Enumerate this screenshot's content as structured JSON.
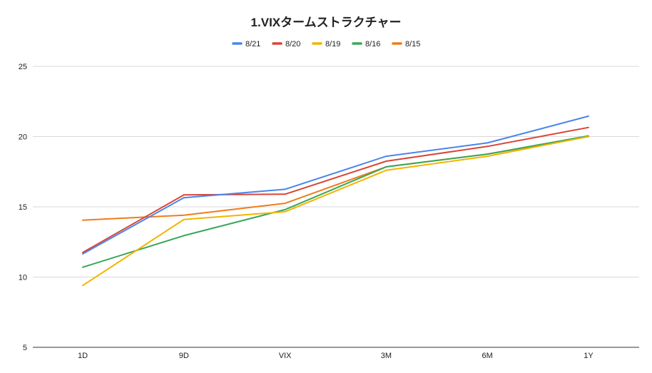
{
  "chart_data": {
    "type": "line",
    "title": "1.VIXタームストラクチャー",
    "xlabel": "",
    "ylabel": "",
    "categories": [
      "1D",
      "9D",
      "VIX",
      "3M",
      "6M",
      "1Y"
    ],
    "ylim": [
      5,
      25
    ],
    "yticks": [
      5,
      10,
      15,
      20,
      25
    ],
    "grid": true,
    "legend_position": "top",
    "series": [
      {
        "name": "8/21",
        "color": "#4a86e8",
        "values": [
          11.65,
          15.65,
          16.25,
          18.6,
          19.55,
          21.45
        ]
      },
      {
        "name": "8/20",
        "color": "#db4437",
        "values": [
          11.75,
          15.85,
          15.9,
          18.25,
          19.3,
          20.65
        ]
      },
      {
        "name": "8/19",
        "color": "#f4b400",
        "values": [
          9.4,
          14.1,
          14.65,
          17.6,
          18.6,
          20.0
        ]
      },
      {
        "name": "8/16",
        "color": "#3aa757",
        "values": [
          10.7,
          12.95,
          14.8,
          17.85,
          18.75,
          20.05
        ]
      },
      {
        "name": "8/15",
        "color": "#f07c1a",
        "values": [
          14.05,
          14.4,
          15.25,
          17.85,
          18.75,
          20.0
        ]
      }
    ]
  }
}
